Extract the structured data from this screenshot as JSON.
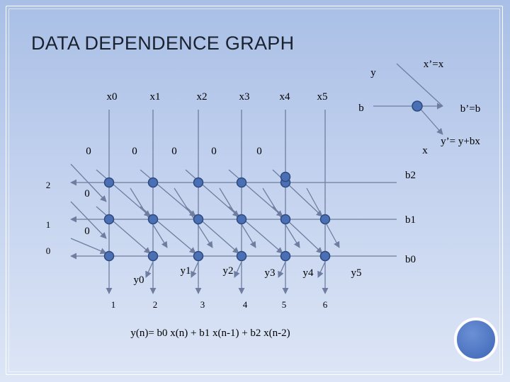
{
  "title": "DATA DEPENDENCE GRAPH",
  "inputs": [
    "x0",
    "x1",
    "x2",
    "x3",
    "x4",
    "x5"
  ],
  "outputs": [
    "y0",
    "y1",
    "y2",
    "y3",
    "y4",
    "y5"
  ],
  "time_ticks": [
    "1",
    "2",
    "3",
    "4",
    "5",
    "6"
  ],
  "row_ticks": [
    "2",
    "1",
    "0"
  ],
  "init_top": [
    "0",
    "0",
    "0",
    "0",
    "0"
  ],
  "init_left": [
    "0",
    "0"
  ],
  "coeffs": [
    "b2",
    "b1",
    "b0"
  ],
  "cell": {
    "y_label": "y",
    "x_label": "x",
    "b_label": "b",
    "x_out": "x’=x",
    "b_out": "b’=b",
    "y_out": "y’= y+bx"
  },
  "equation": "y(n)= b0 x(n) + b1 x(n-1) + b2 x(n-2)",
  "colors": {
    "node": "#4a6fb5",
    "node_edge": "#2c4a7d",
    "line": "#6f7ea0",
    "circle": "#4a72c4"
  }
}
